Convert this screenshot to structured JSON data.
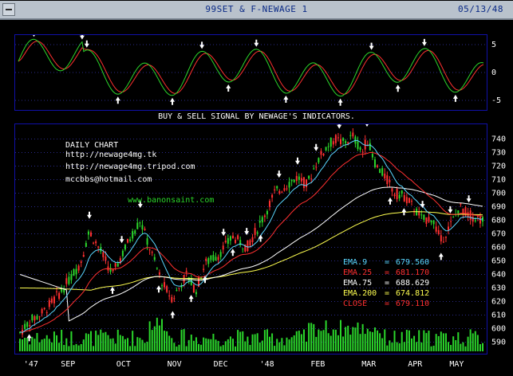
{
  "window": {
    "title": "99SET & F-NEWAGE 1",
    "date": "05/13/48"
  },
  "signal_title": "BUY & SELL SIGNAL BY NEWAGE'S INDICATORS.",
  "info": {
    "daily_chart": "DAILY CHART",
    "url1": "http://newage4mg.tk",
    "url2": "http://newage4mg.tripod.com",
    "email": "mccbbs@hotmail.com",
    "site": "www.banonsaint.com"
  },
  "ema_legend": [
    {
      "label": "EMA.9",
      "value": "679.560",
      "color": "#5ad7ff"
    },
    {
      "label": "EMA.25",
      "value": "681.170",
      "color": "#ff3030"
    },
    {
      "label": "EMA.75",
      "value": "688.629",
      "color": "#ffffff"
    },
    {
      "label": "EMA.200",
      "value": "674.812",
      "color": "#ffff50"
    },
    {
      "label": "CLOSE",
      "value": "679.110",
      "color": "#ff3030"
    }
  ],
  "colors": {
    "panel_border": "#1010a8",
    "grid": "#2a2a8a",
    "up_candle": "#2bd62b",
    "down_candle": "#ff3030",
    "volume": "#2bd62b",
    "osc_green": "#2bd62b",
    "osc_red": "#ff3030",
    "arrow": "#ffffff"
  },
  "oscillator": {
    "y_ticks": [
      "5",
      "0",
      "-5"
    ]
  },
  "main_chart": {
    "y_ticks": [
      "740",
      "730",
      "720",
      "710",
      "700",
      "690",
      "680",
      "670",
      "660",
      "650",
      "640",
      "630",
      "620",
      "610",
      "600",
      "590"
    ],
    "x_ticks": [
      "'47",
      "SEP",
      "OCT",
      "NOV",
      "DEC",
      "'48",
      "FEB",
      "MAR",
      "APR",
      "MAY"
    ]
  },
  "chart_data": {
    "type": "candlestick",
    "title": "99SET & F-NEWAGE 1",
    "ylim": [
      585,
      745
    ],
    "y_ticks": [
      740,
      730,
      720,
      710,
      700,
      690,
      680,
      670,
      660,
      650,
      640,
      630,
      620,
      610,
      600,
      590
    ],
    "x_ticks": [
      "'47",
      "SEP",
      "OCT",
      "NOV",
      "DEC",
      "'48",
      "FEB",
      "MAR",
      "APR",
      "MAY"
    ],
    "series_approx": {
      "close_keypoints": [
        {
          "month": "'47",
          "value": 596
        },
        {
          "month": "SEP",
          "value": 635
        },
        {
          "month": "OCT",
          "value": 675
        },
        {
          "month": "OCT",
          "value": 682
        },
        {
          "month": "NOV",
          "value": 620
        },
        {
          "month": "DEC",
          "value": 650
        },
        {
          "month": "'48",
          "value": 665
        },
        {
          "month": "'48",
          "value": 700
        },
        {
          "month": "FEB",
          "value": 740
        },
        {
          "month": "MAR",
          "value": 742
        },
        {
          "month": "MAR",
          "value": 705
        },
        {
          "month": "APR",
          "value": 688
        },
        {
          "month": "APR",
          "value": 660
        },
        {
          "month": "MAY",
          "value": 688
        },
        {
          "month": "MAY",
          "value": 679.11
        }
      ]
    },
    "ema": [
      {
        "name": "EMA.9",
        "value": 679.56
      },
      {
        "name": "EMA.25",
        "value": 681.17
      },
      {
        "name": "EMA.75",
        "value": 688.629
      },
      {
        "name": "EMA.200",
        "value": 674.812
      }
    ],
    "close": 679.11
  }
}
